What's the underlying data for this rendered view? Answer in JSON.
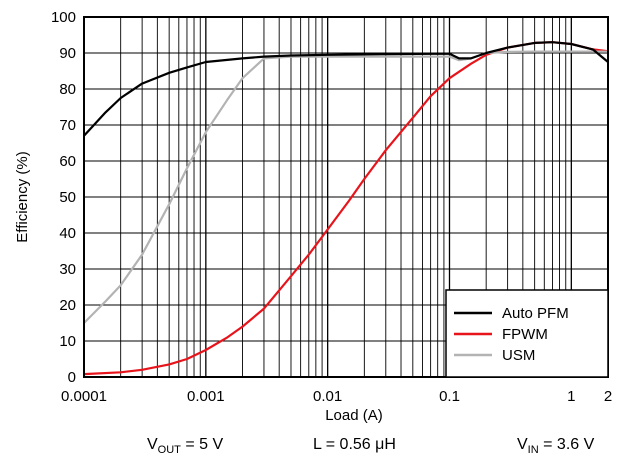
{
  "chart_data": {
    "type": "line",
    "xlabel": "Load (A)",
    "ylabel": "Efficiency (%)",
    "x_scale": "log",
    "xlim": [
      0.0001,
      2
    ],
    "ylim": [
      0,
      100
    ],
    "x_ticks": [
      {
        "value": 0.0001,
        "label": "0.0001"
      },
      {
        "value": 0.001,
        "label": "0.001"
      },
      {
        "value": 0.01,
        "label": "0.01"
      },
      {
        "value": 0.1,
        "label": "0.1"
      },
      {
        "value": 1,
        "label": "1"
      },
      {
        "value": 2,
        "label": "2"
      }
    ],
    "y_ticks": [
      0,
      10,
      20,
      30,
      40,
      50,
      60,
      70,
      80,
      90,
      100
    ],
    "grid": true,
    "legend_position": "bottom-right",
    "series": [
      {
        "name": "Auto PFM",
        "color": "#000000",
        "points": [
          [
            0.0001,
            67
          ],
          [
            0.00015,
            73.5
          ],
          [
            0.0002,
            77.5
          ],
          [
            0.0003,
            81.5
          ],
          [
            0.0005,
            84.5
          ],
          [
            0.0007,
            86
          ],
          [
            0.001,
            87.5
          ],
          [
            0.002,
            88.5
          ],
          [
            0.003,
            89
          ],
          [
            0.005,
            89.3
          ],
          [
            0.01,
            89.5
          ],
          [
            0.03,
            89.7
          ],
          [
            0.1,
            89.8
          ],
          [
            0.12,
            88.5
          ],
          [
            0.15,
            88.5
          ],
          [
            0.2,
            90
          ],
          [
            0.3,
            91.5
          ],
          [
            0.5,
            92.8
          ],
          [
            0.7,
            93
          ],
          [
            1,
            92.5
          ],
          [
            1.5,
            91
          ],
          [
            2,
            87.5
          ]
        ]
      },
      {
        "name": "FPWM",
        "color": "#e8141b",
        "points": [
          [
            0.0001,
            0.8
          ],
          [
            0.0002,
            1.3
          ],
          [
            0.0003,
            2
          ],
          [
            0.0005,
            3.5
          ],
          [
            0.0007,
            5
          ],
          [
            0.001,
            7.5
          ],
          [
            0.0015,
            11
          ],
          [
            0.002,
            14
          ],
          [
            0.003,
            19
          ],
          [
            0.005,
            28
          ],
          [
            0.007,
            34
          ],
          [
            0.01,
            41
          ],
          [
            0.015,
            49
          ],
          [
            0.02,
            55
          ],
          [
            0.03,
            63
          ],
          [
            0.05,
            72
          ],
          [
            0.07,
            78
          ],
          [
            0.1,
            83
          ],
          [
            0.15,
            87
          ],
          [
            0.2,
            89.5
          ],
          [
            0.3,
            91.5
          ],
          [
            0.5,
            92.8
          ],
          [
            0.7,
            93
          ],
          [
            1,
            92.5
          ],
          [
            1.5,
            91
          ],
          [
            2,
            90.5
          ]
        ]
      },
      {
        "name": "USM",
        "color": "#b3b3b3",
        "points": [
          [
            0.0001,
            15
          ],
          [
            0.00015,
            21
          ],
          [
            0.0002,
            25.5
          ],
          [
            0.0003,
            34
          ],
          [
            0.0005,
            48
          ],
          [
            0.0007,
            58
          ],
          [
            0.001,
            68
          ],
          [
            0.0015,
            77
          ],
          [
            0.002,
            83
          ],
          [
            0.003,
            88.5
          ],
          [
            0.005,
            89
          ],
          [
            0.01,
            89
          ],
          [
            0.03,
            89
          ],
          [
            0.1,
            89
          ],
          [
            0.12,
            88
          ],
          [
            0.15,
            88.5
          ],
          [
            0.2,
            90
          ],
          [
            0.3,
            90.3
          ],
          [
            0.5,
            90.4
          ],
          [
            1,
            90.4
          ],
          [
            2,
            90.4
          ]
        ]
      }
    ]
  },
  "conditions": {
    "vout_sub": "OUT",
    "vout_value": "= 5 V",
    "inductor": "L = 0.56 μH",
    "vin_sub": "IN",
    "vin_value": "= 3.6 V",
    "v_letter": "V"
  }
}
